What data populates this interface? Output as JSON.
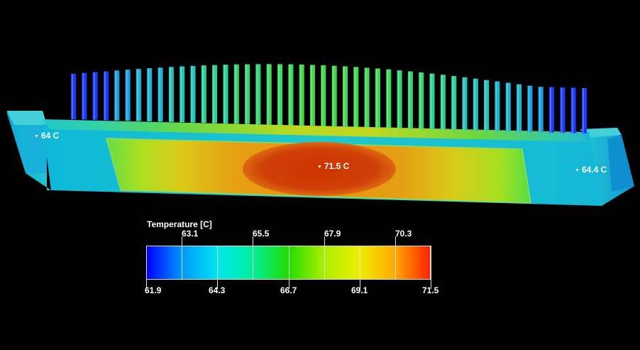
{
  "legend": {
    "title": "Temperature [C]",
    "min": 61.9,
    "max": 71.5,
    "top_ticks": [
      "63.1",
      "65.5",
      "67.9",
      "70.3"
    ],
    "bottom_ticks": [
      "61.9",
      "64.3",
      "66.7",
      "69.1",
      "71.5"
    ],
    "colors": [
      "#0000ff",
      "#0099ff",
      "#00e6f0",
      "#00ee99",
      "#22dd00",
      "#aaee00",
      "#eeee00",
      "#ffaa00",
      "#ff2200"
    ]
  },
  "probes": {
    "left": "64 C",
    "center": "71.5 C",
    "right": "64.4 C"
  }
}
